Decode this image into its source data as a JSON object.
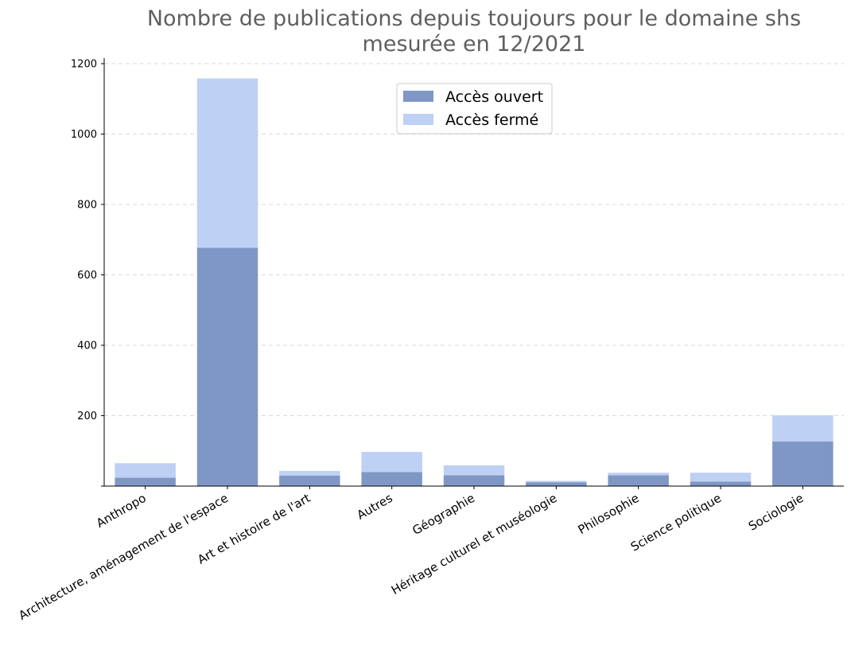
{
  "chart_data": {
    "type": "bar",
    "stacked": true,
    "title": "Nombre de publications depuis toujours pour le domaine shs",
    "subtitle": "mesurée en 12/2021",
    "xlabel": "",
    "ylabel": "",
    "ylim": [
      0,
      1200
    ],
    "yticks": [
      200,
      400,
      600,
      800,
      1000,
      1200
    ],
    "grid": "y-dashed",
    "legend_position": "top-center",
    "categories": [
      "Anthropo",
      "Architecture, aménagement de l'espace",
      "Art et histoire de l'art",
      "Autres",
      "Géographie",
      "Héritage culturel et muséologie",
      "Philosophie",
      "Science politique",
      "Sociologie"
    ],
    "series": [
      {
        "name": "Accès ouvert",
        "color": "#7f97c5",
        "values": [
          24,
          677,
          30,
          40,
          31,
          11,
          31,
          13,
          127
        ]
      },
      {
        "name": "Accès fermé",
        "color": "#bed0f4",
        "values": [
          41,
          481,
          13,
          57,
          28,
          4,
          7,
          25,
          74
        ]
      }
    ]
  }
}
